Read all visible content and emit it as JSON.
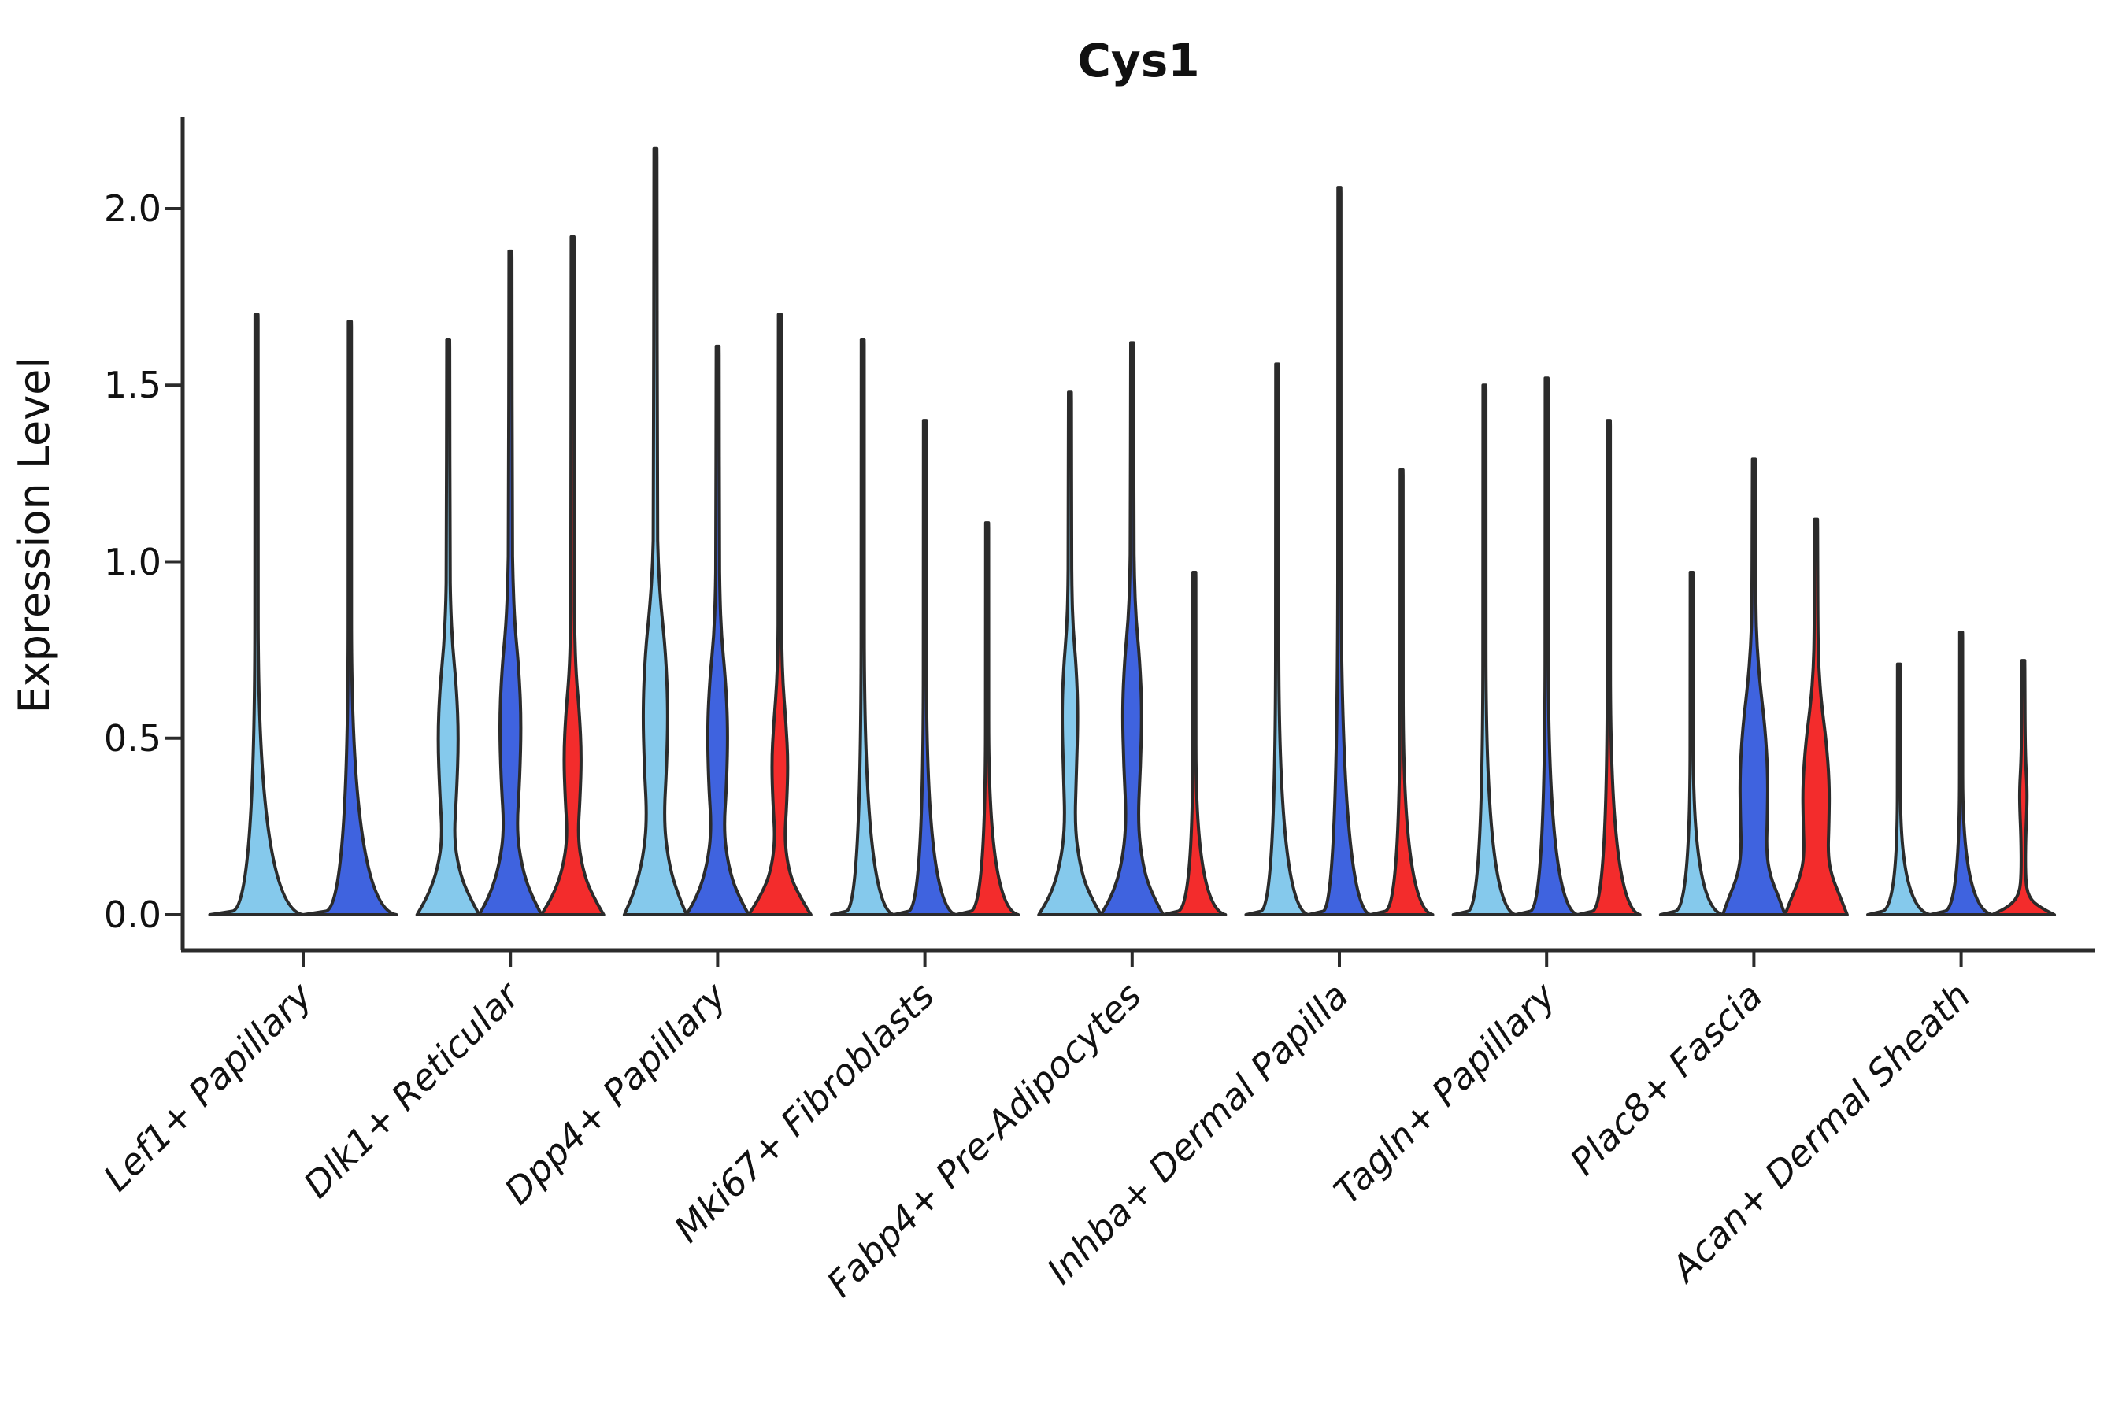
{
  "title": "Cys1",
  "chart_data": {
    "type": "violin",
    "title": "Cys1",
    "xlabel": "",
    "ylabel": "Expression Level",
    "ylim": [
      0,
      2.25
    ],
    "yticks": [
      0.0,
      0.5,
      1.0,
      1.5,
      2.0
    ],
    "ytick_labels": [
      "0.0",
      "0.5",
      "1.0",
      "1.5",
      "2.0"
    ],
    "grid": false,
    "legend": "none",
    "series_colors": {
      "sample_1": "#85C9EC",
      "sample_2": "#3F63DF",
      "sample_3": "#F32C2C"
    },
    "outline_color": "#2B2B2B",
    "categories": [
      "Lef1+ Papillary",
      "Dlk1+ Reticular",
      "Dpp4+ Papillary",
      "Mki67+ Fibroblasts",
      "Fabp4+ Pre-Adipocytes",
      "Inhba+ Dermal Papilla",
      "Tagln+ Papillary",
      "Plac8+ Fascia",
      "Acan+ Dermal Sheath"
    ],
    "violins": [
      {
        "category": "Lef1+ Papillary",
        "violins": [
          {
            "series": "sample_1",
            "max": 1.7,
            "shape": "flat"
          },
          {
            "series": "sample_2",
            "max": 1.68,
            "shape": "flat"
          }
        ]
      },
      {
        "category": "Dlk1+ Reticular",
        "violins": [
          {
            "series": "sample_1",
            "max": 1.63,
            "shape": "body",
            "profile": [
              [
                0,
                1
              ],
              [
                0.06,
                0.62
              ],
              [
                0.13,
                0.34
              ],
              [
                0.22,
                0.185
              ],
              [
                0.34,
                0.27
              ],
              [
                0.5,
                0.335
              ],
              [
                0.64,
                0.27
              ],
              [
                0.76,
                0.14
              ],
              [
                0.88,
                0.075
              ],
              [
                1.0,
                0.055
              ],
              [
                1.58,
                0.05
              ],
              [
                1.63,
                0.045
              ]
            ]
          },
          {
            "series": "sample_2",
            "max": 1.88,
            "shape": "body",
            "profile": [
              [
                0,
                1
              ],
              [
                0.06,
                0.64
              ],
              [
                0.14,
                0.36
              ],
              [
                0.24,
                0.2
              ],
              [
                0.38,
                0.3
              ],
              [
                0.55,
                0.35
              ],
              [
                0.7,
                0.27
              ],
              [
                0.82,
                0.14
              ],
              [
                0.95,
                0.08
              ],
              [
                1.08,
                0.055
              ],
              [
                1.83,
                0.05
              ],
              [
                1.88,
                0.045
              ]
            ]
          },
          {
            "series": "sample_3",
            "max": 1.92,
            "shape": "body",
            "profile": [
              [
                0,
                1
              ],
              [
                0.06,
                0.6
              ],
              [
                0.13,
                0.32
              ],
              [
                0.22,
                0.165
              ],
              [
                0.33,
                0.24
              ],
              [
                0.45,
                0.285
              ],
              [
                0.57,
                0.22
              ],
              [
                0.68,
                0.11
              ],
              [
                0.8,
                0.065
              ],
              [
                0.92,
                0.052
              ],
              [
                1.87,
                0.05
              ],
              [
                1.92,
                0.045
              ]
            ]
          }
        ]
      },
      {
        "category": "Dpp4+ Papillary",
        "violins": [
          {
            "series": "sample_1",
            "max": 2.17,
            "shape": "body",
            "profile": [
              [
                0,
                1
              ],
              [
                0.07,
                0.66
              ],
              [
                0.16,
                0.4
              ],
              [
                0.27,
                0.27
              ],
              [
                0.42,
                0.36
              ],
              [
                0.58,
                0.405
              ],
              [
                0.74,
                0.33
              ],
              [
                0.88,
                0.17
              ],
              [
                1.0,
                0.085
              ],
              [
                1.12,
                0.058
              ],
              [
                2.12,
                0.05
              ],
              [
                2.17,
                0.045
              ]
            ]
          },
          {
            "series": "sample_2",
            "max": 1.61,
            "shape": "body",
            "profile": [
              [
                0,
                1
              ],
              [
                0.06,
                0.62
              ],
              [
                0.14,
                0.34
              ],
              [
                0.24,
                0.195
              ],
              [
                0.37,
                0.29
              ],
              [
                0.53,
                0.33
              ],
              [
                0.67,
                0.25
              ],
              [
                0.79,
                0.12
              ],
              [
                0.91,
                0.07
              ],
              [
                1.03,
                0.054
              ],
              [
                1.56,
                0.05
              ],
              [
                1.61,
                0.045
              ]
            ]
          },
          {
            "series": "sample_3",
            "max": 1.7,
            "shape": "body",
            "profile": [
              [
                0,
                1
              ],
              [
                0.06,
                0.58
              ],
              [
                0.12,
                0.3
              ],
              [
                0.21,
                0.15
              ],
              [
                0.31,
                0.22
              ],
              [
                0.43,
                0.265
              ],
              [
                0.54,
                0.2
              ],
              [
                0.65,
                0.1
              ],
              [
                0.76,
                0.06
              ],
              [
                0.88,
                0.052
              ],
              [
                1.65,
                0.05
              ],
              [
                1.7,
                0.045
              ]
            ]
          }
        ]
      },
      {
        "category": "Mki67+ Fibroblasts",
        "violins": [
          {
            "series": "sample_1",
            "max": 1.63,
            "shape": "flat"
          },
          {
            "series": "sample_2",
            "max": 1.4,
            "shape": "flat"
          },
          {
            "series": "sample_3",
            "max": 1.11,
            "shape": "flat"
          }
        ]
      },
      {
        "category": "Fabp4+ Pre-Adipocytes",
        "violins": [
          {
            "series": "sample_1",
            "max": 1.48,
            "shape": "body",
            "profile": [
              [
                0,
                1
              ],
              [
                0.06,
                0.6
              ],
              [
                0.14,
                0.32
              ],
              [
                0.25,
                0.155
              ],
              [
                0.4,
                0.21
              ],
              [
                0.57,
                0.26
              ],
              [
                0.7,
                0.205
              ],
              [
                0.81,
                0.1
              ],
              [
                0.92,
                0.062
              ],
              [
                1.04,
                0.053
              ],
              [
                1.43,
                0.05
              ],
              [
                1.48,
                0.045
              ]
            ]
          },
          {
            "series": "sample_2",
            "max": 1.62,
            "shape": "body",
            "profile": [
              [
                0,
                1
              ],
              [
                0.06,
                0.62
              ],
              [
                0.14,
                0.34
              ],
              [
                0.26,
                0.18
              ],
              [
                0.42,
                0.27
              ],
              [
                0.58,
                0.315
              ],
              [
                0.72,
                0.245
              ],
              [
                0.84,
                0.12
              ],
              [
                0.96,
                0.07
              ],
              [
                1.08,
                0.054
              ],
              [
                1.57,
                0.05
              ],
              [
                1.62,
                0.045
              ]
            ]
          },
          {
            "series": "sample_3",
            "max": 0.97,
            "shape": "flat"
          }
        ]
      },
      {
        "category": "Inhba+ Dermal Papilla",
        "violins": [
          {
            "series": "sample_1",
            "max": 1.56,
            "shape": "flat"
          },
          {
            "series": "sample_2",
            "max": 2.06,
            "shape": "flat"
          },
          {
            "series": "sample_3",
            "max": 1.26,
            "shape": "flat"
          }
        ]
      },
      {
        "category": "Tagln+ Papillary",
        "violins": [
          {
            "series": "sample_1",
            "max": 1.5,
            "shape": "flat"
          },
          {
            "series": "sample_2",
            "max": 1.52,
            "shape": "flat"
          },
          {
            "series": "sample_3",
            "max": 1.4,
            "shape": "flat"
          }
        ]
      },
      {
        "category": "Plac8+ Fascia",
        "violins": [
          {
            "series": "sample_1",
            "max": 0.97,
            "shape": "flat"
          },
          {
            "series": "sample_2",
            "max": 1.29,
            "shape": "body",
            "profile": [
              [
                0,
                1
              ],
              [
                0.05,
                0.8
              ],
              [
                0.11,
                0.52
              ],
              [
                0.18,
                0.4
              ],
              [
                0.28,
                0.435
              ],
              [
                0.4,
                0.45
              ],
              [
                0.53,
                0.36
              ],
              [
                0.65,
                0.2
              ],
              [
                0.76,
                0.1
              ],
              [
                0.87,
                0.06
              ],
              [
                1.24,
                0.05
              ],
              [
                1.29,
                0.045
              ]
            ]
          },
          {
            "series": "sample_3",
            "max": 1.12,
            "shape": "body",
            "profile": [
              [
                0,
                1
              ],
              [
                0.05,
                0.78
              ],
              [
                0.11,
                0.5
              ],
              [
                0.17,
                0.38
              ],
              [
                0.26,
                0.415
              ],
              [
                0.37,
                0.43
              ],
              [
                0.49,
                0.33
              ],
              [
                0.6,
                0.17
              ],
              [
                0.7,
                0.085
              ],
              [
                0.8,
                0.058
              ],
              [
                1.07,
                0.05
              ],
              [
                1.12,
                0.045
              ]
            ]
          }
        ]
      },
      {
        "category": "Acan+ Dermal Sheath",
        "violins": [
          {
            "series": "sample_1",
            "max": 0.71,
            "shape": "flat"
          },
          {
            "series": "sample_2",
            "max": 0.8,
            "shape": "flat"
          },
          {
            "series": "sample_3",
            "max": 0.72,
            "shape": "body",
            "profile": [
              [
                0,
                1
              ],
              [
                0.025,
                0.42
              ],
              [
                0.06,
                0.12
              ],
              [
                0.12,
                0.065
              ],
              [
                0.22,
                0.075
              ],
              [
                0.3,
                0.115
              ],
              [
                0.36,
                0.12
              ],
              [
                0.43,
                0.075
              ],
              [
                0.52,
                0.055
              ],
              [
                0.67,
                0.05
              ],
              [
                0.72,
                0.045
              ]
            ]
          }
        ]
      }
    ]
  }
}
